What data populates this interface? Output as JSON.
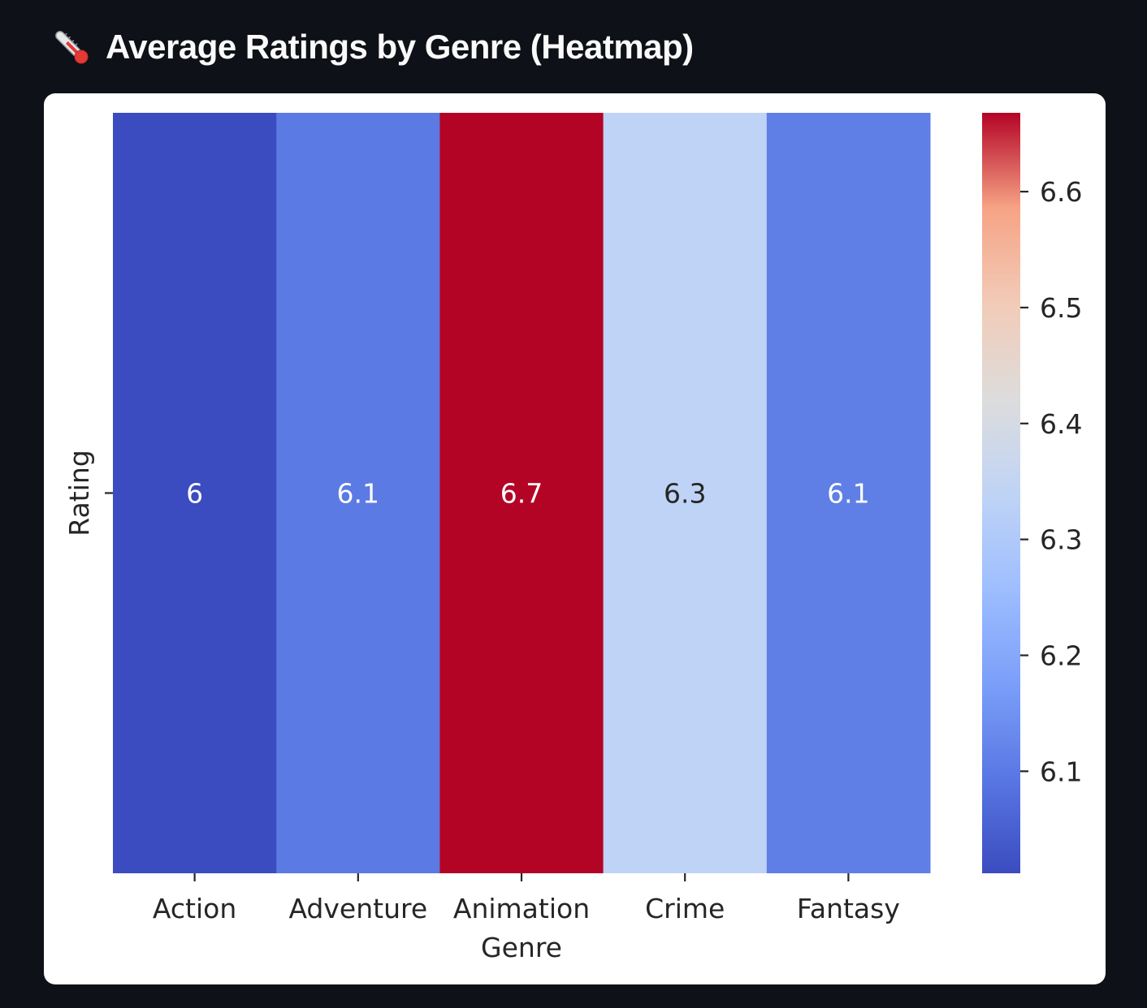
{
  "header": {
    "title": "Average Ratings by Genre (Heatmap)",
    "icon": "thermometer-icon"
  },
  "chart_data": {
    "type": "heatmap",
    "title": "",
    "xlabel": "Genre",
    "ylabel": "",
    "y_categories": [
      "Rating"
    ],
    "categories": [
      "Action",
      "Adventure",
      "Animation",
      "Crime",
      "Fantasy"
    ],
    "values": [
      6.0,
      6.1,
      6.7,
      6.3,
      6.1
    ],
    "cell_colors": [
      "#3b4cc0",
      "#5b7ae3",
      "#b40426",
      "#bfd3f6",
      "#5f7fe6"
    ],
    "annotation_colors": [
      "#ffffff",
      "#ffffff",
      "#ffffff",
      "#262626",
      "#ffffff"
    ],
    "colorbar": {
      "colormap": "coolwarm",
      "range": [
        6.012,
        6.668
      ],
      "ticks": [
        "6.1",
        "6.2",
        "6.3",
        "6.4",
        "6.5",
        "6.6"
      ]
    }
  }
}
